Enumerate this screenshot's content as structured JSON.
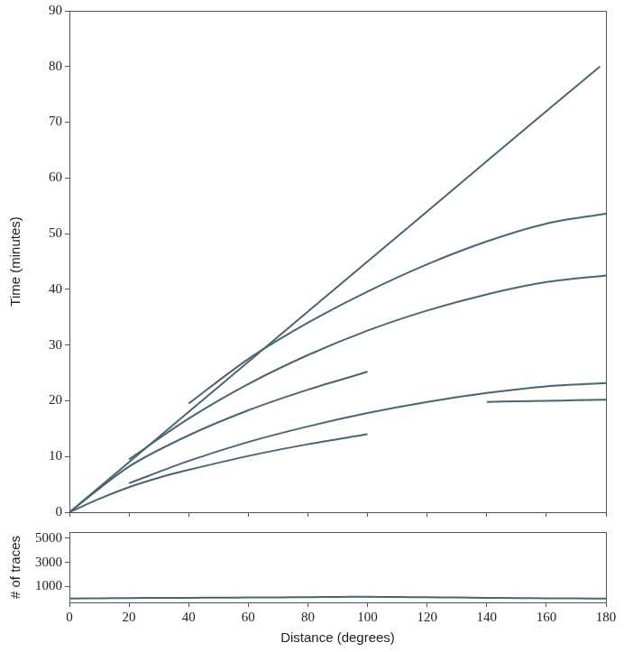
{
  "chart_data": [
    {
      "type": "line",
      "y_label": "Time (minutes)",
      "xlim": [
        0,
        180
      ],
      "xticks": [
        0,
        20,
        40,
        60,
        80,
        100,
        120,
        140,
        160,
        180
      ],
      "ylim": [
        0,
        90
      ],
      "yticks": [
        0,
        10,
        20,
        30,
        40,
        50,
        60,
        70,
        80,
        90
      ],
      "tick_labels": "y",
      "grid": false,
      "color": "#4a6470",
      "series": [
        {
          "x": [
            0,
            10,
            20,
            30,
            40,
            60,
            80,
            100
          ],
          "values": [
            0,
            2.4,
            4.5,
            6.2,
            7.6,
            10.1,
            12.2,
            14.0
          ]
        },
        {
          "x": [
            140,
            150,
            160,
            170,
            180
          ],
          "values": [
            19.8,
            19.9,
            20.0,
            20.1,
            20.2
          ]
        },
        {
          "x": [
            20,
            40,
            60,
            80,
            100,
            120,
            140,
            160,
            180
          ],
          "values": [
            5.2,
            9.2,
            12.6,
            15.4,
            17.8,
            19.8,
            21.4,
            22.6,
            23.2
          ]
        },
        {
          "x": [
            0,
            20,
            40,
            60,
            80,
            100
          ],
          "values": [
            0,
            8.2,
            13.8,
            18.3,
            22.0,
            25.2
          ]
        },
        {
          "x": [
            20,
            40,
            60,
            80,
            100,
            120,
            140,
            160,
            180
          ],
          "values": [
            9.5,
            16.8,
            23.0,
            28.2,
            32.6,
            36.2,
            39.1,
            41.3,
            42.5
          ]
        },
        {
          "x": [
            40,
            60,
            80,
            100,
            120,
            140,
            160,
            180
          ],
          "values": [
            19.5,
            27.5,
            34.0,
            39.6,
            44.5,
            48.6,
            51.8,
            53.6
          ]
        },
        {
          "x": [
            0,
            40,
            80,
            120,
            160,
            178
          ],
          "values": [
            0,
            18,
            36,
            54,
            72,
            80
          ]
        }
      ]
    },
    {
      "type": "line",
      "x_label": "Distance (degrees)",
      "y_label": "# of traces",
      "xlim": [
        0,
        180
      ],
      "xticks": [
        0,
        20,
        40,
        60,
        80,
        100,
        120,
        140,
        160,
        180
      ],
      "ylim": [
        -300,
        5500
      ],
      "yticks": [
        1000,
        3000,
        5000
      ],
      "grid": false,
      "color": "#4a6470",
      "series": [
        {
          "x": [
            0,
            10,
            20,
            30,
            40,
            50,
            60,
            70,
            80,
            90,
            100,
            110,
            120,
            130,
            140,
            150,
            160,
            170,
            180
          ],
          "values": [
            20,
            40,
            60,
            70,
            80,
            90,
            100,
            110,
            130,
            150,
            160,
            140,
            120,
            100,
            80,
            60,
            40,
            30,
            20
          ]
        }
      ]
    }
  ]
}
